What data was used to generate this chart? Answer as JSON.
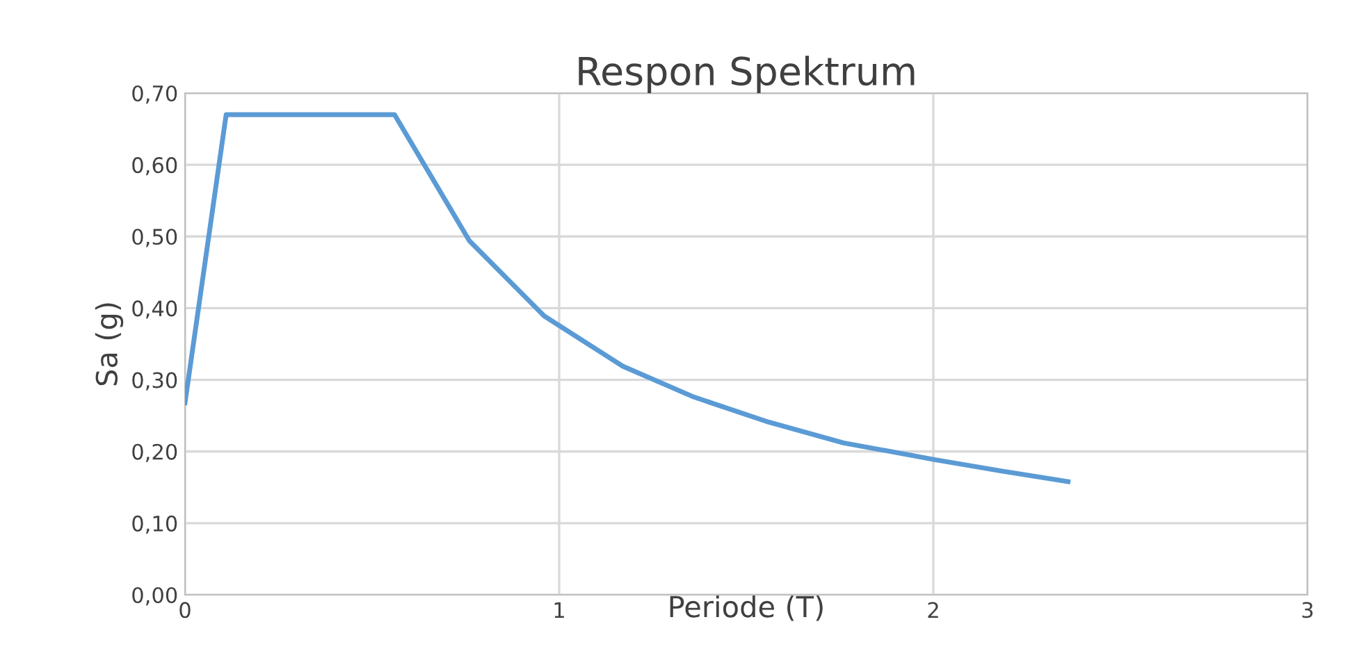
{
  "chart_data": {
    "type": "line",
    "title": "Respon Spektrum",
    "xlabel": "Periode (T)",
    "ylabel": "Sa (g)",
    "series": [
      {
        "color": "#5b9bd5",
        "x": [
          0,
          0.11,
          0.56,
          0.76,
          0.96,
          1.17,
          1.36,
          1.56,
          1.76,
          2.0,
          2.18,
          2.36
        ],
        "values": [
          0.268,
          0.67,
          0.67,
          0.494,
          0.389,
          0.319,
          0.276,
          0.241,
          0.212,
          0.189,
          0.173,
          0.158
        ]
      }
    ],
    "xlim": [
      0,
      3
    ],
    "xticks": [
      0,
      1,
      2,
      3
    ],
    "ylim": [
      0,
      0.7
    ],
    "yticks": [
      {
        "value": 0,
        "label": "0,00"
      },
      {
        "value": 0.1,
        "label": "0,10"
      },
      {
        "value": 0.2,
        "label": "0,20"
      },
      {
        "value": 0.3,
        "label": "0,30"
      },
      {
        "value": 0.4,
        "label": "0,40"
      },
      {
        "value": 0.5,
        "label": "0,50"
      },
      {
        "value": 0.6,
        "label": "0,60"
      },
      {
        "value": 0.7,
        "label": "0,70"
      }
    ],
    "grid": true,
    "legend": false,
    "marker": "none",
    "line_style": "solid"
  }
}
